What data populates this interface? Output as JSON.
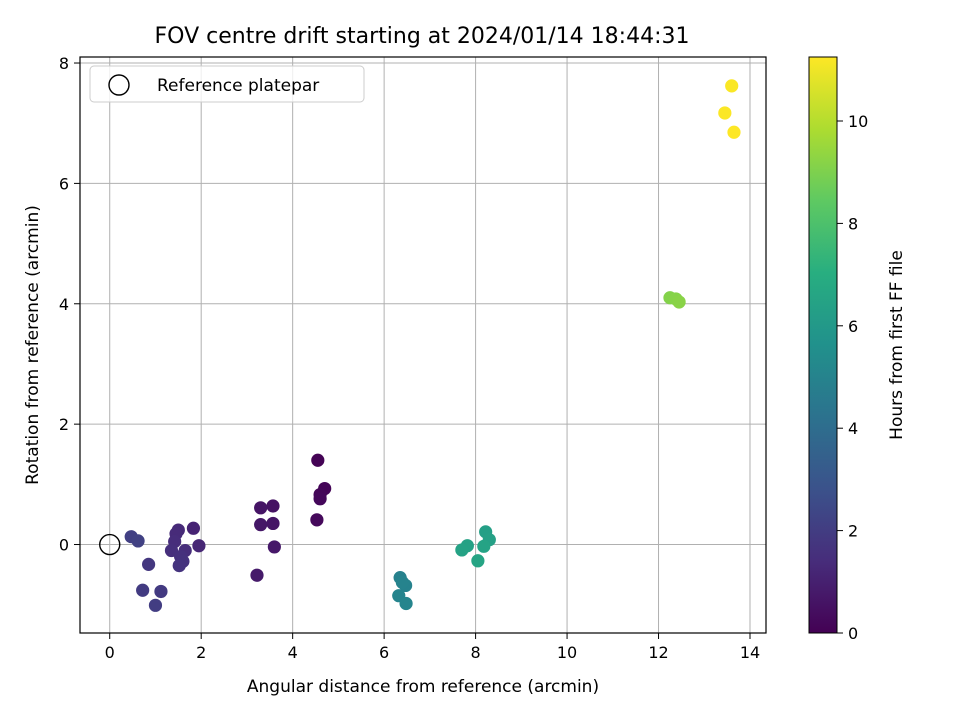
{
  "chart_data": {
    "type": "scatter",
    "title": "FOV centre drift starting at 2024/01/14 18:44:31",
    "xlabel": "Angular distance from reference (arcmin)",
    "ylabel": "Rotation from reference (arcmin)",
    "xlim": [
      -0.65,
      14.35
    ],
    "ylim": [
      -1.47,
      8.1
    ],
    "xticks": [
      0,
      2,
      4,
      6,
      8,
      10,
      12,
      14
    ],
    "yticks": [
      0,
      2,
      4,
      6,
      8
    ],
    "grid": true,
    "legend": {
      "position": "top-left",
      "entries": [
        "Reference platepar"
      ]
    },
    "reference_point": {
      "x": 0,
      "y": 0
    },
    "colorbar": {
      "label": "Hours from first FF file",
      "range": [
        0,
        11.25
      ],
      "ticks": [
        0,
        2,
        4,
        6,
        8,
        10
      ],
      "colormap": "viridis"
    },
    "points": [
      {
        "x": 4.55,
        "y": 1.4,
        "c": 0.05
      },
      {
        "x": 4.7,
        "y": 0.93,
        "c": 0.1
      },
      {
        "x": 4.6,
        "y": 0.83,
        "c": 0.15
      },
      {
        "x": 4.6,
        "y": 0.76,
        "c": 0.2
      },
      {
        "x": 4.53,
        "y": 0.41,
        "c": 0.25
      },
      {
        "x": 3.57,
        "y": 0.64,
        "c": 0.55
      },
      {
        "x": 3.3,
        "y": 0.61,
        "c": 0.6
      },
      {
        "x": 3.57,
        "y": 0.35,
        "c": 0.65
      },
      {
        "x": 3.3,
        "y": 0.33,
        "c": 0.7
      },
      {
        "x": 3.6,
        "y": -0.04,
        "c": 0.75
      },
      {
        "x": 3.22,
        "y": -0.51,
        "c": 0.8
      },
      {
        "x": 1.83,
        "y": 0.27,
        "c": 1.1
      },
      {
        "x": 1.95,
        "y": -0.02,
        "c": 1.2
      },
      {
        "x": 1.5,
        "y": 0.24,
        "c": 1.3
      },
      {
        "x": 1.45,
        "y": 0.18,
        "c": 1.35
      },
      {
        "x": 1.42,
        "y": 0.05,
        "c": 1.4
      },
      {
        "x": 1.65,
        "y": -0.1,
        "c": 1.45
      },
      {
        "x": 1.35,
        "y": -0.1,
        "c": 1.5
      },
      {
        "x": 1.55,
        "y": -0.2,
        "c": 1.55
      },
      {
        "x": 1.6,
        "y": -0.28,
        "c": 1.6
      },
      {
        "x": 1.52,
        "y": -0.35,
        "c": 1.65
      },
      {
        "x": 0.85,
        "y": -0.33,
        "c": 1.8
      },
      {
        "x": 1.12,
        "y": -0.78,
        "c": 1.9
      },
      {
        "x": 0.72,
        "y": -0.76,
        "c": 1.95
      },
      {
        "x": 1.0,
        "y": -1.01,
        "c": 2.0
      },
      {
        "x": 0.47,
        "y": 0.13,
        "c": 2.1
      },
      {
        "x": 0.62,
        "y": 0.06,
        "c": 2.15
      },
      {
        "x": 6.35,
        "y": -0.55,
        "c": 4.9
      },
      {
        "x": 6.47,
        "y": -0.68,
        "c": 4.95
      },
      {
        "x": 6.4,
        "y": -0.63,
        "c": 5.0
      },
      {
        "x": 6.32,
        "y": -0.85,
        "c": 5.05
      },
      {
        "x": 6.48,
        "y": -0.98,
        "c": 5.1
      },
      {
        "x": 8.22,
        "y": 0.21,
        "c": 6.3
      },
      {
        "x": 8.3,
        "y": 0.08,
        "c": 6.35
      },
      {
        "x": 7.82,
        "y": -0.02,
        "c": 6.4
      },
      {
        "x": 7.7,
        "y": -0.09,
        "c": 6.45
      },
      {
        "x": 8.18,
        "y": -0.03,
        "c": 6.5
      },
      {
        "x": 8.05,
        "y": -0.27,
        "c": 6.55
      },
      {
        "x": 12.25,
        "y": 4.1,
        "c": 9.1
      },
      {
        "x": 12.38,
        "y": 4.08,
        "c": 9.15
      },
      {
        "x": 12.45,
        "y": 4.03,
        "c": 9.2
      },
      {
        "x": 13.6,
        "y": 7.62,
        "c": 11.2
      },
      {
        "x": 13.45,
        "y": 7.17,
        "c": 11.22
      },
      {
        "x": 13.65,
        "y": 6.85,
        "c": 11.25
      }
    ]
  }
}
